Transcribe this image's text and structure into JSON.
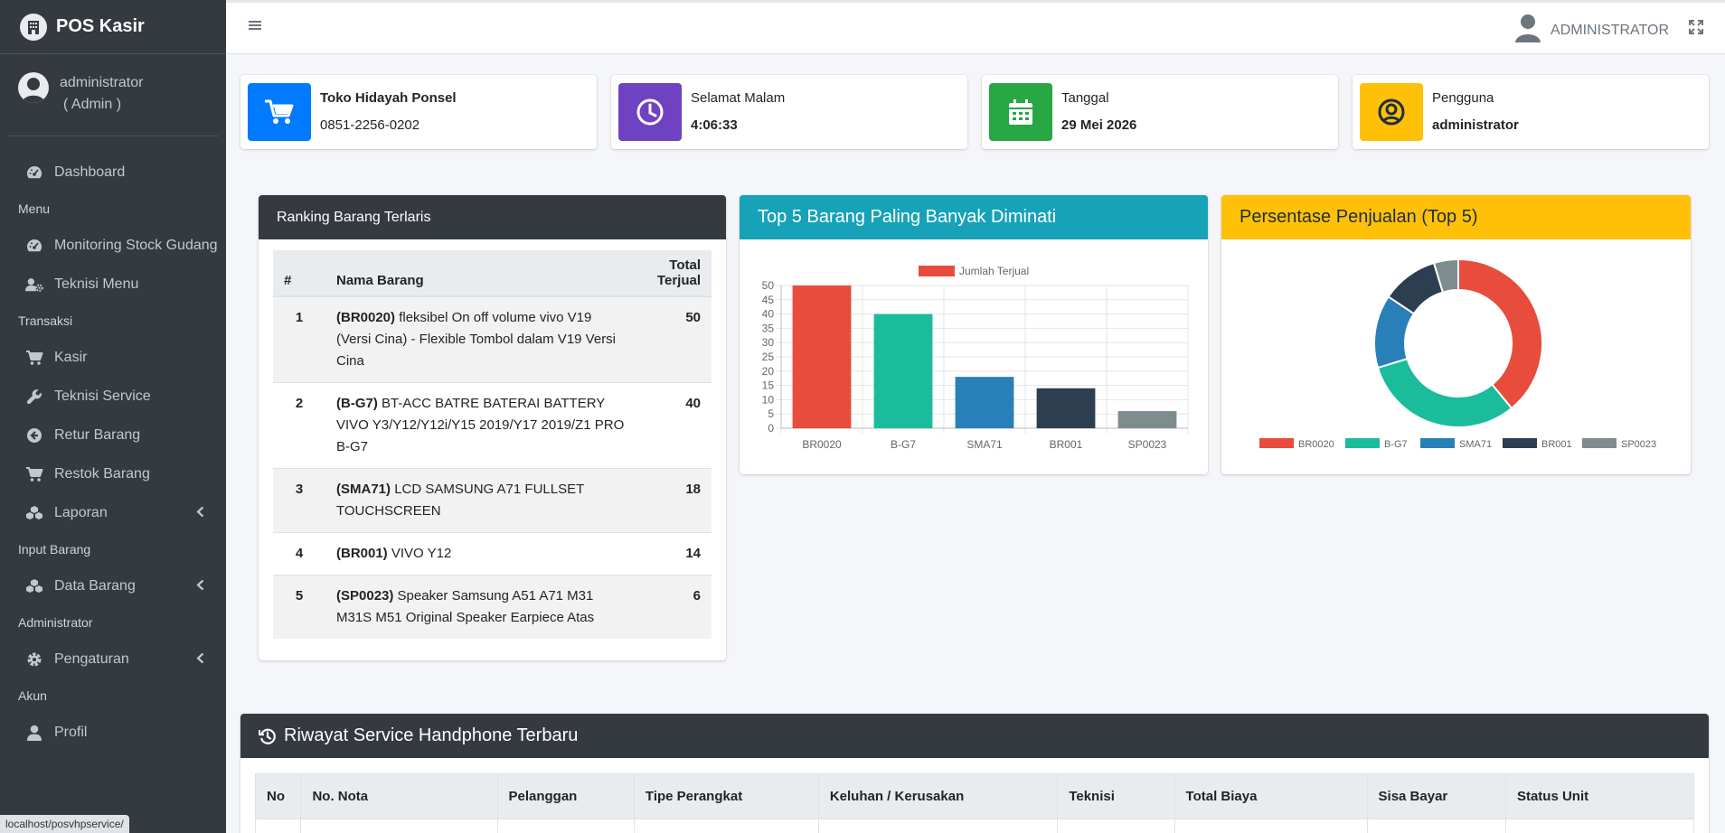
{
  "app": {
    "brand": "POS Kasir"
  },
  "user_panel": {
    "name": "administrator",
    "role": "( Admin )"
  },
  "sidebar": {
    "items": [
      {
        "type": "item",
        "label": "Dashboard",
        "icon": "tachometer-icon",
        "name": "sidebar-item-dashboard"
      },
      {
        "type": "header",
        "label": "Menu"
      },
      {
        "type": "item",
        "label": "Monitoring Stock Gudang",
        "icon": "tachometer-icon",
        "name": "sidebar-item-monitoring-stock"
      },
      {
        "type": "item",
        "label": "Teknisi Menu",
        "icon": "user-cog-icon",
        "name": "sidebar-item-teknisi-menu"
      },
      {
        "type": "header",
        "label": "Transaksi"
      },
      {
        "type": "item",
        "label": "Kasir",
        "icon": "cart-icon",
        "name": "sidebar-item-kasir"
      },
      {
        "type": "item",
        "label": "Teknisi Service",
        "icon": "wrench-icon",
        "name": "sidebar-item-teknisi-service"
      },
      {
        "type": "item",
        "label": "Retur Barang",
        "icon": "arrow-circle-left-icon",
        "name": "sidebar-item-retur-barang"
      },
      {
        "type": "item",
        "label": "Restok Barang",
        "icon": "cart-icon",
        "name": "sidebar-item-restok-barang"
      },
      {
        "type": "item",
        "label": "Laporan",
        "icon": "cubes-icon",
        "name": "sidebar-item-laporan",
        "caret": true
      },
      {
        "type": "header",
        "label": "Input Barang"
      },
      {
        "type": "item",
        "label": "Data Barang",
        "icon": "cubes-icon",
        "name": "sidebar-item-data-barang",
        "caret": true
      },
      {
        "type": "header",
        "label": "Administrator"
      },
      {
        "type": "item",
        "label": "Pengaturan",
        "icon": "gear-icon",
        "name": "sidebar-item-pengaturan",
        "caret": true
      },
      {
        "type": "header",
        "label": "Akun"
      },
      {
        "type": "item",
        "label": "Profil",
        "icon": "user-icon",
        "name": "sidebar-item-profil"
      }
    ]
  },
  "status_url": "localhost/posvhpservice/",
  "topbar": {
    "user_label": "ADMINISTRATOR"
  },
  "info_boxes": {
    "store": {
      "title": "Toko Hidayah Ponsel",
      "phone": "0851-2256-0202",
      "color": "#007bff"
    },
    "greeting": {
      "label": "Selamat Malam",
      "time": "4:06:33",
      "color": "#6f42c1"
    },
    "date": {
      "label": "Tanggal",
      "value": "29 Mei 2026",
      "color": "#28a745"
    },
    "user": {
      "label": "Pengguna",
      "value": "administrator",
      "color": "#ffc107"
    }
  },
  "ranking": {
    "title": "Ranking Barang Terlaris",
    "headers": {
      "no": "#",
      "name": "Nama Barang",
      "total_line1": "Total",
      "total_line2": "Terjual"
    },
    "rows": [
      {
        "no": "1",
        "code": "(BR0020)",
        "desc": "fleksibel On off volume vivo V19 (Versi Cina) - Flexible Tombol dalam V19 Versi Cina",
        "total": "50"
      },
      {
        "no": "2",
        "code": "(B-G7)",
        "desc": "BT-ACC BATRE BATERAI BATTERY VIVO Y3/Y12/Y12i/Y15 2019/Y17 2019/Z1 PRO B-G7",
        "total": "40"
      },
      {
        "no": "3",
        "code": "(SMA71)",
        "desc": "LCD SAMSUNG A71 FULLSET TOUCHSCREEN",
        "total": "18"
      },
      {
        "no": "4",
        "code": "(BR001)",
        "desc": "VIVO Y12",
        "total": "14"
      },
      {
        "no": "5",
        "code": "(SP0023)",
        "desc": "Speaker Samsung A51 A71 M31 M31S M51 Original Speaker Earpiece Atas",
        "total": "6"
      }
    ]
  },
  "bar_card": {
    "title": "Top 5 Barang Paling Banyak Diminati"
  },
  "donut_card": {
    "title": "Persentase Penjualan (Top 5)"
  },
  "chart_data": [
    {
      "type": "bar",
      "categories": [
        "BR0020",
        "B-G7",
        "SMA71",
        "BR001",
        "SP0023"
      ],
      "series": [
        {
          "name": "Jumlah Terjual",
          "values": [
            50,
            40,
            18,
            14,
            6
          ]
        }
      ],
      "colors": [
        "#e74c3c",
        "#1abc9c",
        "#2980b9",
        "#2c3e50",
        "#7f8c8d"
      ],
      "legend_color": "#e74c3c",
      "yticks": [
        "0",
        "5",
        "10",
        "15",
        "20",
        "25",
        "30",
        "35",
        "40",
        "45",
        "50"
      ],
      "ylim": [
        0,
        50
      ],
      "grid": true,
      "legend": "top"
    },
    {
      "type": "pie",
      "labels": [
        "BR0020",
        "B-G7",
        "SMA71",
        "BR001",
        "SP0023"
      ],
      "values": [
        50,
        40,
        18,
        14,
        6
      ],
      "colors": [
        "#e74c3c",
        "#1abc9c",
        "#2980b9",
        "#2c3e50",
        "#7f8c8d"
      ],
      "legend": "bottom"
    }
  ],
  "service": {
    "title": "Riwayat Service Handphone Terbaru",
    "headers": [
      "No",
      "No. Nota",
      "Pelanggan",
      "Tipe Perangkat",
      "Keluhan / Kerusakan",
      "Teknisi",
      "Total Biaya",
      "Sisa Bayar",
      "Status Unit"
    ]
  }
}
